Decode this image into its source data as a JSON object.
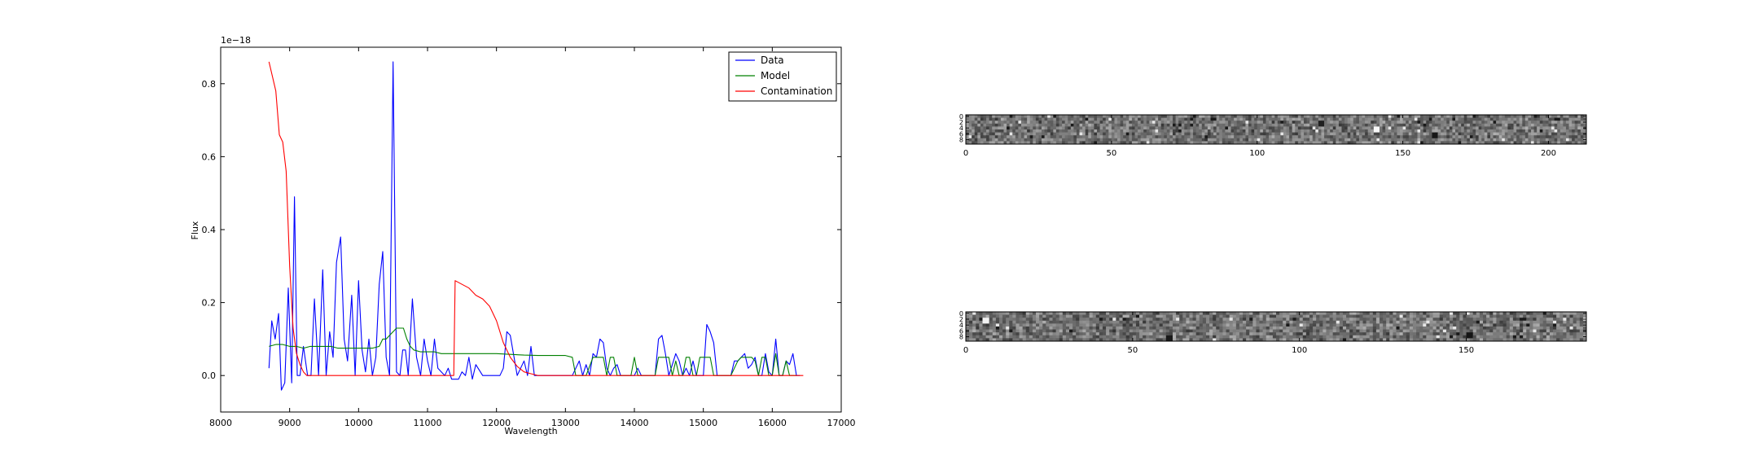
{
  "chart_data": [
    {
      "type": "line",
      "title": "",
      "xlabel": "Wavelength",
      "ylabel": "Flux",
      "offset_text": "1e−18",
      "xlim": [
        8000,
        17000
      ],
      "ylim": [
        -0.1,
        0.9
      ],
      "xticks": [
        8000,
        9000,
        10000,
        11000,
        12000,
        13000,
        14000,
        15000,
        16000,
        17000
      ],
      "xtick_labels": [
        "8000",
        "9000",
        "10000",
        "11000",
        "12000",
        "13000",
        "14000",
        "15000",
        "16000",
        "17000"
      ],
      "yticks": [
        0.0,
        0.2,
        0.4,
        0.6,
        0.8
      ],
      "ytick_labels": [
        "0.0",
        "0.2",
        "0.4",
        "0.6",
        "0.8"
      ],
      "grid": false,
      "legend_position": "top-right",
      "series": [
        {
          "name": "Data",
          "color": "#0000ff",
          "x": [
            8700,
            8740,
            8790,
            8840,
            8880,
            8930,
            8980,
            9030,
            9070,
            9110,
            9150,
            9200,
            9260,
            9310,
            9360,
            9420,
            9480,
            9530,
            9580,
            9630,
            9680,
            9740,
            9790,
            9840,
            9900,
            9950,
            10000,
            10050,
            10100,
            10150,
            10200,
            10250,
            10300,
            10350,
            10400,
            10450,
            10500,
            10550,
            10600,
            10640,
            10680,
            10720,
            10780,
            10840,
            10900,
            10950,
            11000,
            11050,
            11100,
            11150,
            11200,
            11250,
            11300,
            11350,
            11400,
            11450,
            11500,
            11550,
            11600,
            11650,
            11700,
            11800,
            11900,
            12000,
            12050,
            12100,
            12150,
            12200,
            12300,
            12400,
            12450,
            12500,
            12550,
            12600,
            12650,
            12700,
            12750,
            12800,
            12850,
            12900,
            13000,
            13100,
            13200,
            13250,
            13300,
            13350,
            13400,
            13450,
            13500,
            13550,
            13600,
            13650,
            13700,
            13750,
            13800,
            13850,
            13900,
            13950,
            14000,
            14050,
            14100,
            14200,
            14300,
            14350,
            14400,
            14450,
            14500,
            14550,
            14600,
            14650,
            14700,
            14750,
            14800,
            14850,
            14900,
            14950,
            15000,
            15050,
            15100,
            15150,
            15200,
            15250,
            15300,
            15400,
            15450,
            15500,
            15550,
            15600,
            15650,
            15700,
            15750,
            15800,
            15850,
            15900,
            15950,
            16000,
            16050,
            16100,
            16150,
            16200,
            16250,
            16300,
            16350,
            16400
          ],
          "y": [
            0.02,
            0.15,
            0.1,
            0.17,
            -0.04,
            -0.02,
            0.24,
            -0.02,
            0.49,
            0.0,
            0.0,
            0.08,
            0.0,
            0.0,
            0.21,
            0.0,
            0.29,
            0.0,
            0.12,
            0.05,
            0.31,
            0.38,
            0.1,
            0.04,
            0.22,
            0.0,
            0.26,
            0.07,
            0.01,
            0.1,
            0.0,
            0.05,
            0.25,
            0.34,
            0.05,
            0.0,
            0.86,
            0.01,
            0.0,
            0.07,
            0.07,
            0.0,
            0.21,
            0.05,
            0.0,
            0.1,
            0.04,
            0.0,
            0.1,
            0.02,
            0.01,
            0.0,
            0.02,
            -0.01,
            -0.01,
            -0.01,
            0.01,
            0.0,
            0.05,
            -0.01,
            0.03,
            0.0,
            0.0,
            0.0,
            0.0,
            0.02,
            0.12,
            0.11,
            0.0,
            0.04,
            0.0,
            0.08,
            0.0,
            0.0,
            0.0,
            0.0,
            0.0,
            0.0,
            0.0,
            0.0,
            0.0,
            0.0,
            0.04,
            0.0,
            0.03,
            0.0,
            0.06,
            0.05,
            0.1,
            0.09,
            0.02,
            0.0,
            0.02,
            0.03,
            0.0,
            0.0,
            0.0,
            0.0,
            0.0,
            0.02,
            0.0,
            0.0,
            0.0,
            0.1,
            0.11,
            0.06,
            0.0,
            0.03,
            0.06,
            0.04,
            0.0,
            0.02,
            0.0,
            0.04,
            0.0,
            0.0,
            0.0,
            0.14,
            0.12,
            0.09,
            0.0,
            0.0,
            0.0,
            0.0,
            0.04,
            0.04,
            0.05,
            0.06,
            0.02,
            0.03,
            0.05,
            0.0,
            0.0,
            0.06,
            0.01,
            0.0,
            0.1,
            0.0,
            0.0,
            0.04,
            0.03,
            0.06,
            0.0,
            0.0
          ],
          "_note": "values in units of 1e-18"
        },
        {
          "name": "Model",
          "color": "#008000",
          "x": [
            8700,
            8800,
            8900,
            9000,
            9100,
            9200,
            9300,
            9400,
            9500,
            9600,
            9700,
            9800,
            9900,
            10000,
            10100,
            10200,
            10300,
            10350,
            10400,
            10450,
            10500,
            10550,
            10600,
            10650,
            10700,
            10750,
            10800,
            10900,
            11000,
            11100,
            11200,
            11300,
            11400,
            11500,
            11600,
            11700,
            11800,
            11900,
            12000,
            12200,
            12400,
            12600,
            12800,
            13000,
            13100,
            13150,
            13200,
            13300,
            13400,
            13450,
            13500,
            13550,
            13600,
            13650,
            13700,
            13750,
            13800,
            13850,
            13900,
            13950,
            14000,
            14050,
            14100,
            14200,
            14300,
            14350,
            14400,
            14450,
            14500,
            14550,
            14600,
            14650,
            14700,
            14750,
            14800,
            14850,
            14900,
            14950,
            15000,
            15050,
            15100,
            15150,
            15200,
            15300,
            15400,
            15500,
            15550,
            15600,
            15650,
            15700,
            15750,
            15800,
            15850,
            15900,
            15950,
            16000,
            16050,
            16100,
            16150,
            16200,
            16250,
            16300,
            16350
          ],
          "y": [
            0.08,
            0.085,
            0.085,
            0.08,
            0.08,
            0.075,
            0.08,
            0.08,
            0.08,
            0.08,
            0.075,
            0.075,
            0.075,
            0.075,
            0.075,
            0.075,
            0.08,
            0.1,
            0.1,
            0.11,
            0.12,
            0.13,
            0.13,
            0.13,
            0.1,
            0.08,
            0.07,
            0.065,
            0.065,
            0.065,
            0.06,
            0.06,
            0.06,
            0.06,
            0.06,
            0.06,
            0.06,
            0.06,
            0.06,
            0.058,
            0.056,
            0.055,
            0.055,
            0.055,
            0.05,
            0.0,
            0.0,
            0.0,
            0.05,
            0.05,
            0.05,
            0.05,
            0.0,
            0.05,
            0.05,
            0.0,
            0.0,
            0.0,
            0.0,
            0.0,
            0.05,
            0.0,
            0.0,
            0.0,
            0.0,
            0.05,
            0.05,
            0.05,
            0.05,
            0.0,
            0.04,
            0.0,
            0.0,
            0.05,
            0.05,
            0.0,
            0.0,
            0.05,
            0.05,
            0.05,
            0.05,
            0.0,
            0.0,
            0.0,
            0.0,
            0.04,
            0.05,
            0.05,
            0.05,
            0.05,
            0.04,
            0.0,
            0.05,
            0.05,
            0.0,
            0.0,
            0.06,
            0.0,
            0.0,
            0.04,
            0.0,
            0.0,
            0.0
          ],
          "_note": "values in units of 1e-18"
        },
        {
          "name": "Contamination",
          "color": "#ff0000",
          "x": [
            8700,
            8750,
            8800,
            8850,
            8900,
            8950,
            9000,
            9050,
            9100,
            9150,
            9200,
            9250,
            9300,
            9350,
            9400,
            9500,
            11000,
            11350,
            11380,
            11400,
            11500,
            11600,
            11700,
            11800,
            11900,
            12000,
            12100,
            12200,
            12300,
            12400,
            12500,
            12600,
            12700,
            12800,
            13000,
            14000,
            15000,
            16000,
            16450
          ],
          "y": [
            0.86,
            0.82,
            0.78,
            0.66,
            0.64,
            0.56,
            0.3,
            0.13,
            0.06,
            0.03,
            0.01,
            0.0,
            0.0,
            0.0,
            0.0,
            0.0,
            0.0,
            0.0,
            0.0,
            0.26,
            0.25,
            0.24,
            0.22,
            0.21,
            0.19,
            0.15,
            0.09,
            0.05,
            0.025,
            0.01,
            0.005,
            0.0,
            0.0,
            0.0,
            0.0,
            0.0,
            0.0,
            0.0,
            0.0
          ],
          "_note": "values in units of 1e-18"
        }
      ]
    },
    {
      "type": "heatmap",
      "title": "",
      "xlim": [
        0,
        213
      ],
      "xticks": [
        0,
        50,
        100,
        150,
        200
      ],
      "xtick_labels": [
        "0",
        "50",
        "100",
        "150",
        "200"
      ],
      "yticks": [
        0,
        2,
        4,
        6,
        8
      ],
      "ytick_labels": [
        "0",
        "2",
        "4",
        "6",
        "8"
      ],
      "rows": 10,
      "colormap": "gray"
    },
    {
      "type": "heatmap",
      "title": "",
      "xlim": [
        0,
        186
      ],
      "xticks": [
        0,
        50,
        100,
        150
      ],
      "xtick_labels": [
        "0",
        "50",
        "100",
        "150"
      ],
      "yticks": [
        0,
        2,
        4,
        6,
        8
      ],
      "ytick_labels": [
        "0",
        "2",
        "4",
        "6",
        "8"
      ],
      "rows": 10,
      "colormap": "gray"
    }
  ]
}
